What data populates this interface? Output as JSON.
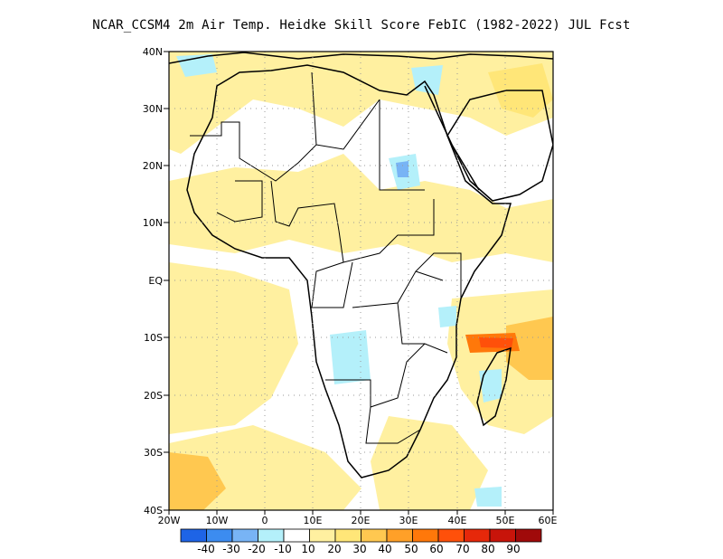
{
  "title": "NCAR_CCSM4  2m Air Temp. Heidke Skill Score FebIC (1982-2022) JUL Fcst",
  "map": {
    "lat_labels": [
      "40N",
      "30N",
      "20N",
      "10N",
      "EQ",
      "10S",
      "20S",
      "30S",
      "40S"
    ],
    "lon_labels": [
      "20W",
      "10W",
      "0",
      "10E",
      "20E",
      "30E",
      "40E",
      "50E",
      "60E"
    ],
    "lat_range": [
      -40,
      40
    ],
    "lon_range": [
      -20,
      60
    ],
    "grid": "dotted",
    "region": "Africa"
  },
  "colorbar": {
    "colors": [
      "#1e64e6",
      "#3c8cf0",
      "#78b4f5",
      "#b4f0fa",
      "#ffffff",
      "#fff0a0",
      "#ffe678",
      "#ffc850",
      "#ffa028",
      "#ff780a",
      "#ff500a",
      "#e6280a",
      "#c8140a",
      "#a00a0a"
    ],
    "labels": [
      "-40",
      "-30",
      "-20",
      "-10",
      "10",
      "20",
      "30",
      "40",
      "50",
      "60",
      "70",
      "80",
      "90"
    ]
  }
}
